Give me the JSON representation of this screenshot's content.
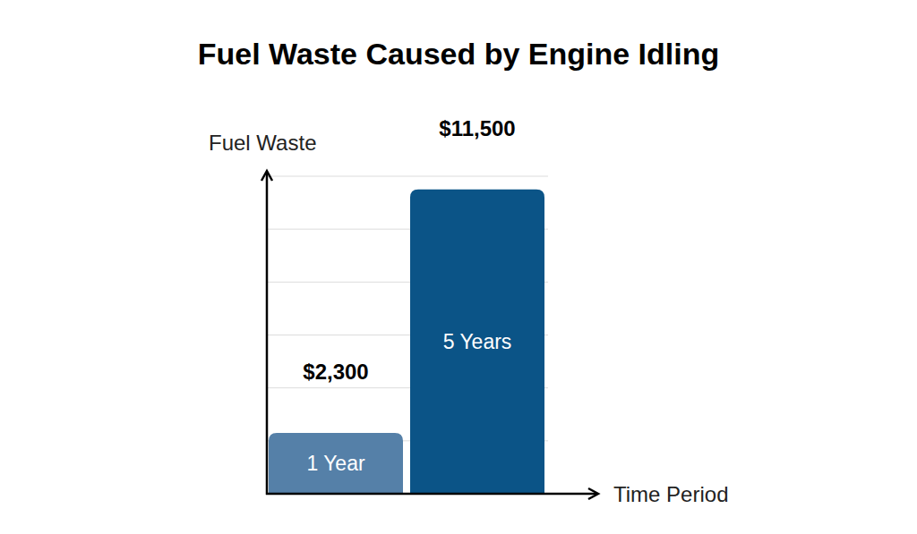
{
  "chart_data": {
    "type": "bar",
    "title": "Fuel Waste Caused by Engine Idling",
    "x_label": "Time Period",
    "y_label": "Fuel Waste",
    "categories": [
      "1 Year",
      "5 Years"
    ],
    "values": [
      2300,
      11500
    ],
    "value_labels": [
      "$2,300",
      "$11,500"
    ],
    "colors": [
      "#5580a8",
      "#0b5487"
    ],
    "ylim": [
      0,
      12000
    ],
    "yticks": [
      0,
      2000,
      4000,
      6000,
      8000,
      10000,
      12000
    ],
    "grid": true,
    "data_labels": true,
    "tick_labels": false
  }
}
